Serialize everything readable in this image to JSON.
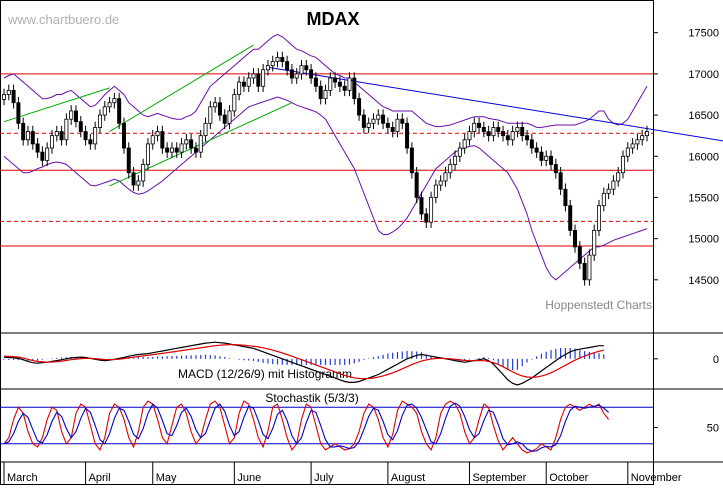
{
  "chart_data": {
    "type": "candlestick",
    "title": "MDAX",
    "watermark_url": "www.chartbuero.de",
    "source_label": "Hoppenstedt Charts",
    "x_months": [
      "March",
      "April",
      "May",
      "June",
      "July",
      "August",
      "September",
      "October",
      "November"
    ],
    "price_panel": {
      "ylim": [
        14000,
        17800
      ],
      "y_ticks": [
        "17500",
        "17000",
        "16500",
        "16000",
        "15500",
        "15000",
        "14500"
      ],
      "horizontal_lines": [
        {
          "level": 17000,
          "style": "solid",
          "color": "#dd0000"
        },
        {
          "level": 16280,
          "style": "dashed",
          "color": "#dd0000"
        },
        {
          "level": 15830,
          "style": "solid",
          "color": "#dd0000"
        },
        {
          "level": 15210,
          "style": "dashed",
          "color": "#dd0000"
        },
        {
          "level": 14910,
          "style": "solid",
          "color": "#dd0000"
        }
      ],
      "trendline": {
        "from": [
          55,
          17080
        ],
        "to": [
          175,
          15950
        ],
        "color": "#0000dd"
      },
      "channel_upper": {
        "from": [
          0,
          16420
        ],
        "to": [
          22,
          16830
        ],
        "color": "#00aa00"
      },
      "channel_upper_2": {
        "from": [
          22,
          16300
        ],
        "to": [
          52,
          17350
        ],
        "color": "#00aa00"
      },
      "channel_lower": {
        "from": [
          22,
          15640
        ],
        "to": [
          60,
          16650
        ],
        "color": "#00aa00"
      },
      "closes": [
        16750,
        16800,
        16650,
        16400,
        16200,
        16300,
        16150,
        16050,
        15950,
        16100,
        16250,
        16300,
        16200,
        16450,
        16550,
        16420,
        16300,
        16200,
        16150,
        16350,
        16500,
        16600,
        16650,
        16700,
        16400,
        16100,
        15800,
        15650,
        15700,
        15900,
        16150,
        16250,
        16300,
        16100,
        16050,
        16100,
        16050,
        16150,
        16200,
        16100,
        16050,
        16250,
        16400,
        16600,
        16650,
        16500,
        16400,
        16550,
        16750,
        16900,
        16850,
        16950,
        17000,
        16850,
        17050,
        17100,
        17150,
        17200,
        17150,
        17050,
        16950,
        17000,
        17100,
        17050,
        16950,
        16850,
        16700,
        16800,
        16950,
        16900,
        16850,
        16800,
        16950,
        16700,
        16500,
        16350,
        16400,
        16450,
        16500,
        16400,
        16350,
        16300,
        16450,
        16400,
        16100,
        15800,
        15500,
        15300,
        15200,
        15500,
        15650,
        15700,
        15800,
        15900,
        16000,
        16100,
        16200,
        16300,
        16400,
        16350,
        16300,
        16250,
        16350,
        16300,
        16250,
        16200,
        16300,
        16350,
        16250,
        16200,
        16100,
        16050,
        15950,
        16000,
        15900,
        15800,
        15600,
        15400,
        15100,
        14900,
        14700,
        14500,
        14800,
        15100,
        15400,
        15550,
        15600,
        15700,
        15800,
        16000,
        16100,
        16150,
        16200,
        16250,
        16300
      ],
      "bollinger_upper": [
        16950,
        16980,
        17000,
        16950,
        16900,
        16850,
        16800,
        16750,
        16700,
        16700,
        16720,
        16750,
        16750,
        16780,
        16800,
        16750,
        16700,
        16650,
        16600,
        16620,
        16680,
        16750,
        16800,
        16850,
        16800,
        16750,
        16650,
        16600,
        16550,
        16500,
        16480,
        16500,
        16520,
        16500,
        16480,
        16460,
        16450,
        16450,
        16480,
        16500,
        16550,
        16650,
        16750,
        16850,
        16900,
        16950,
        17000,
        17050,
        17100,
        17150,
        17200,
        17250,
        17300,
        17300,
        17350,
        17400,
        17450,
        17480,
        17450,
        17400,
        17350,
        17300,
        17280,
        17250,
        17220,
        17200,
        17150,
        17100,
        17050,
        17000,
        16980,
        16950,
        16950,
        16900,
        16850,
        16800,
        16750,
        16700,
        16650,
        16600,
        16580,
        16550,
        16550,
        16550,
        16550,
        16550,
        16500,
        16450,
        16400,
        16380,
        16360,
        16360,
        16370,
        16380,
        16400,
        16420,
        16440,
        16460,
        16480,
        16480,
        16480,
        16460,
        16450,
        16440,
        16420,
        16400,
        16400,
        16400,
        16400,
        16400,
        16380,
        16350,
        16350,
        16360,
        16370,
        16380,
        16380,
        16380,
        16380,
        16380,
        16400,
        16420,
        16450,
        16500,
        16550,
        16550,
        16450,
        16400,
        16380,
        16400,
        16450,
        16550,
        16650,
        16750,
        16850
      ],
      "bollinger_lower": [
        16000,
        15950,
        15900,
        15850,
        15800,
        15800,
        15820,
        15850,
        15870,
        15900,
        15920,
        15930,
        15920,
        15900,
        15850,
        15800,
        15750,
        15700,
        15650,
        15640,
        15660,
        15680,
        15700,
        15720,
        15700,
        15650,
        15600,
        15560,
        15540,
        15550,
        15580,
        15620,
        15660,
        15700,
        15750,
        15800,
        15850,
        15900,
        15950,
        16000,
        16050,
        16100,
        16150,
        16200,
        16250,
        16300,
        16350,
        16400,
        16450,
        16500,
        16550,
        16600,
        16620,
        16640,
        16660,
        16680,
        16700,
        16720,
        16700,
        16680,
        16650,
        16620,
        16600,
        16580,
        16560,
        16540,
        16500,
        16450,
        16350,
        16250,
        16150,
        16050,
        15950,
        15850,
        15700,
        15550,
        15400,
        15250,
        15100,
        15050,
        15050,
        15080,
        15120,
        15180,
        15250,
        15350,
        15450,
        15550,
        15650,
        15750,
        15850,
        15900,
        15950,
        16000,
        16050,
        16080,
        16100,
        16120,
        16130,
        16100,
        16050,
        16000,
        15950,
        15900,
        15850,
        15800,
        15700,
        15600,
        15450,
        15300,
        15100,
        14950,
        14800,
        14650,
        14550,
        14500,
        14550,
        14600,
        14650,
        14700,
        14750,
        14800,
        14850,
        14900,
        14900,
        14920,
        14950,
        14980,
        15000,
        15020,
        15040,
        15060,
        15080,
        15100,
        15120
      ]
    },
    "macd_panel": {
      "label": "MACD (12/26/9) mit Histogramm",
      "zero_tick": "0",
      "ylim": [
        -300,
        250
      ],
      "macd": [
        20,
        15,
        10,
        5,
        -10,
        -30,
        -45,
        -50,
        -45,
        -40,
        -30,
        -20,
        -10,
        0,
        10,
        15,
        20,
        15,
        5,
        -5,
        -15,
        -20,
        -15,
        -5,
        5,
        15,
        30,
        40,
        50,
        55,
        60,
        70,
        80,
        90,
        100,
        110,
        120,
        130,
        140,
        150,
        160,
        170,
        180,
        185,
        190,
        185,
        180,
        170,
        160,
        150,
        140,
        130,
        120,
        100,
        80,
        60,
        40,
        20,
        0,
        -20,
        -40,
        -60,
        -80,
        -100,
        -120,
        -140,
        -160,
        -180,
        -200,
        -220,
        -240,
        -260,
        -270,
        -270,
        -260,
        -240,
        -220,
        -200,
        -180,
        -150,
        -120,
        -90,
        -60,
        -30,
        0,
        20,
        40,
        50,
        40,
        30,
        20,
        10,
        0,
        -10,
        -20,
        -30,
        -40,
        -30,
        -20,
        -10,
        0,
        -20,
        -60,
        -120,
        -180,
        -240,
        -280,
        -300,
        -280,
        -250,
        -220,
        -180,
        -140,
        -100,
        -60,
        -20,
        20,
        50,
        80,
        100,
        110,
        120,
        130,
        140,
        150,
        150
      ],
      "signal": [
        30,
        28,
        25,
        20,
        10,
        -5,
        -20,
        -30,
        -35,
        -38,
        -36,
        -32,
        -26,
        -18,
        -10,
        -3,
        3,
        5,
        5,
        2,
        -3,
        -8,
        -10,
        -8,
        -4,
        2,
        10,
        18,
        26,
        34,
        40,
        48,
        55,
        62,
        70,
        78,
        86,
        94,
        102,
        110,
        118,
        126,
        134,
        142,
        150,
        156,
        160,
        162,
        162,
        160,
        156,
        150,
        144,
        136,
        126,
        114,
        100,
        84,
        68,
        50,
        30,
        10,
        -10,
        -30,
        -50,
        -70,
        -90,
        -110,
        -130,
        -150,
        -170,
        -190,
        -205,
        -218,
        -225,
        -228,
        -226,
        -220,
        -210,
        -196,
        -180,
        -160,
        -138,
        -114,
        -90,
        -66,
        -44,
        -26,
        -12,
        -2,
        4,
        6,
        4,
        0,
        -6,
        -12,
        -18,
        -22,
        -22,
        -20,
        -22,
        -30,
        -44,
        -64,
        -90,
        -120,
        -150,
        -176,
        -196,
        -208,
        -212,
        -208,
        -198,
        -182,
        -160,
        -134,
        -104,
        -74,
        -44,
        -16,
        10,
        32,
        52,
        70,
        86,
        100
      ]
    },
    "stoch_panel": {
      "label": "Stochastik (5/3/3)",
      "y_tick": "50",
      "ylim": [
        0,
        100
      ],
      "hlines": [
        80,
        20
      ],
      "k": [
        20,
        30,
        60,
        80,
        70,
        40,
        20,
        15,
        30,
        60,
        80,
        75,
        40,
        20,
        30,
        70,
        85,
        80,
        50,
        20,
        10,
        30,
        70,
        85,
        80,
        60,
        30,
        15,
        40,
        80,
        90,
        85,
        60,
        30,
        20,
        50,
        80,
        85,
        70,
        40,
        20,
        30,
        60,
        85,
        90,
        80,
        50,
        20,
        30,
        70,
        90,
        85,
        60,
        30,
        15,
        40,
        80,
        85,
        60,
        30,
        10,
        20,
        60,
        85,
        80,
        50,
        20,
        10,
        15,
        20,
        15,
        10,
        12,
        20,
        40,
        70,
        85,
        80,
        60,
        30,
        15,
        35,
        75,
        90,
        85,
        80,
        70,
        40,
        20,
        10,
        30,
        70,
        85,
        90,
        85,
        70,
        40,
        20,
        30,
        60,
        85,
        80,
        50,
        25,
        10,
        20,
        30,
        20,
        10,
        5,
        8,
        12,
        20,
        15,
        10,
        30,
        60,
        80,
        85,
        80,
        75,
        80,
        85,
        80,
        85,
        70,
        60
      ]
    }
  }
}
